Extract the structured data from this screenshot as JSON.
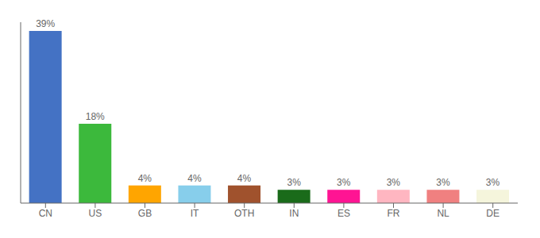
{
  "chart_data": {
    "type": "bar",
    "categories": [
      "CN",
      "US",
      "GB",
      "IT",
      "OTH",
      "IN",
      "ES",
      "FR",
      "NL",
      "DE"
    ],
    "values": [
      39,
      18,
      4,
      4,
      4,
      3,
      3,
      3,
      3,
      3
    ],
    "value_labels": [
      "39%",
      "18%",
      "4%",
      "4%",
      "4%",
      "3%",
      "3%",
      "3%",
      "3%",
      "3%"
    ],
    "colors": [
      "#4472C4",
      "#3CB93C",
      "#FFA500",
      "#87CEEB",
      "#A0522D",
      "#1A6B1A",
      "#FF1493",
      "#FFB6C1",
      "#F08080",
      "#F5F5DC"
    ],
    "ylim": [
      0,
      41
    ],
    "data_labels": true,
    "tick_labels": "x",
    "grid": false
  }
}
